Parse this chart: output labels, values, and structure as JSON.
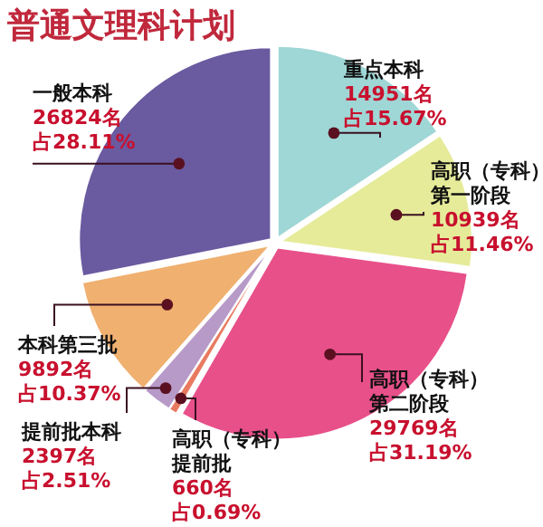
{
  "chart_data": {
    "type": "pie",
    "title": "普通文理科计划",
    "categories": [
      "重点本科",
      "高职（专科）第一阶段",
      "高职（专科）第二阶段",
      "高职（专科）提前批",
      "提前批本科",
      "本科第三批",
      "一般本科"
    ],
    "values": [
      14951,
      10939,
      29769,
      660,
      2397,
      9892,
      26824
    ],
    "colors": [
      "#9fd6d6",
      "#e6eb9a",
      "#e8508a",
      "#e87a60",
      "#b79ac8",
      "#f0b070",
      "#6a5aa0"
    ],
    "value_labels": [
      "14951名",
      "10939名",
      "29769名",
      "660名",
      "2397名",
      "9892名",
      "26824名"
    ],
    "annotations": [
      "占15.67%",
      "占11.46%",
      "占31.19%",
      "占0.69%",
      "占2.51%",
      "占10.37%",
      "占28.11%"
    ]
  }
}
